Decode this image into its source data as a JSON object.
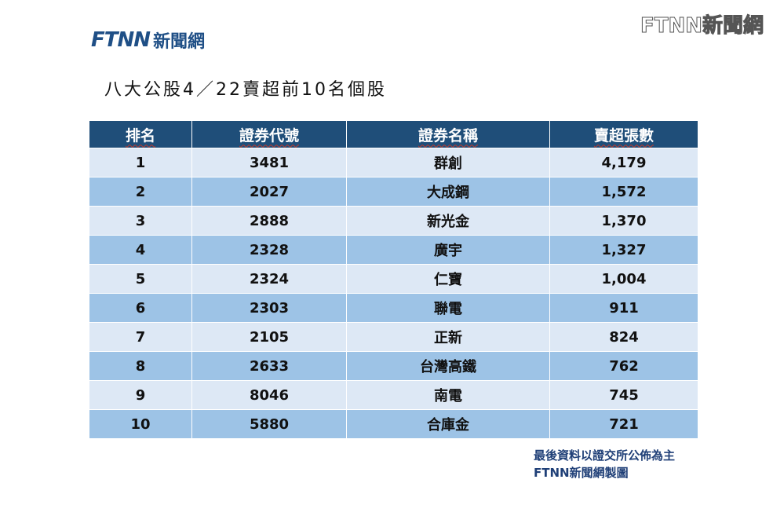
{
  "logo": {
    "mark": "FTNN",
    "text": "新聞網"
  },
  "watermark": "FTNN新聞網",
  "title": "八大公股4／22賣超前10名個股",
  "table": {
    "headers": [
      "排名",
      "證券代號",
      "證券名稱",
      "賣超張數"
    ],
    "rows": [
      [
        "1",
        "3481",
        "群創",
        "4,179"
      ],
      [
        "2",
        "2027",
        "大成鋼",
        "1,572"
      ],
      [
        "3",
        "2888",
        "新光金",
        "1,370"
      ],
      [
        "4",
        "2328",
        "廣宇",
        "1,327"
      ],
      [
        "5",
        "2324",
        "仁寶",
        "1,004"
      ],
      [
        "6",
        "2303",
        "聯電",
        "911"
      ],
      [
        "7",
        "2105",
        "正新",
        "824"
      ],
      [
        "8",
        "2633",
        "台灣高鐵",
        "762"
      ],
      [
        "9",
        "8046",
        "南電",
        "745"
      ],
      [
        "10",
        "5880",
        "合庫金",
        "721"
      ]
    ]
  },
  "notes": [
    "最後資料以證交所公佈為主",
    "FTNN新聞網製圖"
  ],
  "colors": {
    "header": "#1f4e79",
    "row_light": "#dde8f5",
    "row_dark": "#9dc3e6",
    "brand_blue": "#1f4f86",
    "brand_orange": "#f0a21a"
  }
}
